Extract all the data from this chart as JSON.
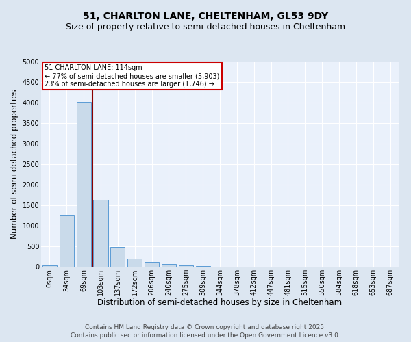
{
  "title_line1": "51, CHARLTON LANE, CHELTENHAM, GL53 9DY",
  "title_line2": "Size of property relative to semi-detached houses in Cheltenham",
  "xlabel": "Distribution of semi-detached houses by size in Cheltenham",
  "ylabel": "Number of semi-detached properties",
  "bin_labels": [
    "0sqm",
    "34sqm",
    "69sqm",
    "103sqm",
    "137sqm",
    "172sqm",
    "206sqm",
    "240sqm",
    "275sqm",
    "309sqm",
    "344sqm",
    "378sqm",
    "412sqm",
    "447sqm",
    "481sqm",
    "515sqm",
    "550sqm",
    "584sqm",
    "618sqm",
    "653sqm",
    "687sqm"
  ],
  "bin_values": [
    30,
    1250,
    4020,
    1640,
    490,
    195,
    110,
    60,
    35,
    10,
    5,
    0,
    0,
    0,
    0,
    0,
    0,
    0,
    0,
    0,
    0
  ],
  "bar_color": "#c9daea",
  "bar_edge_color": "#5b9bd5",
  "vline_x": 2.5,
  "vline_color": "#8B0000",
  "annotation_title": "51 CHARLTON LANE: 114sqm",
  "annotation_line2": "← 77% of semi-detached houses are smaller (5,903)",
  "annotation_line3": "23% of semi-detached houses are larger (1,746) →",
  "annotation_box_color": "#ffffff",
  "annotation_box_edge": "#cc0000",
  "ylim": [
    0,
    5000
  ],
  "yticks": [
    0,
    500,
    1000,
    1500,
    2000,
    2500,
    3000,
    3500,
    4000,
    4500,
    5000
  ],
  "background_color": "#dce6f1",
  "plot_bg_color": "#eaf1fb",
  "footer_line1": "Contains HM Land Registry data © Crown copyright and database right 2025.",
  "footer_line2": "Contains public sector information licensed under the Open Government Licence v3.0.",
  "title_fontsize": 10,
  "subtitle_fontsize": 9,
  "axis_label_fontsize": 8.5,
  "tick_fontsize": 7,
  "footer_fontsize": 6.5,
  "ann_fontsize": 7
}
